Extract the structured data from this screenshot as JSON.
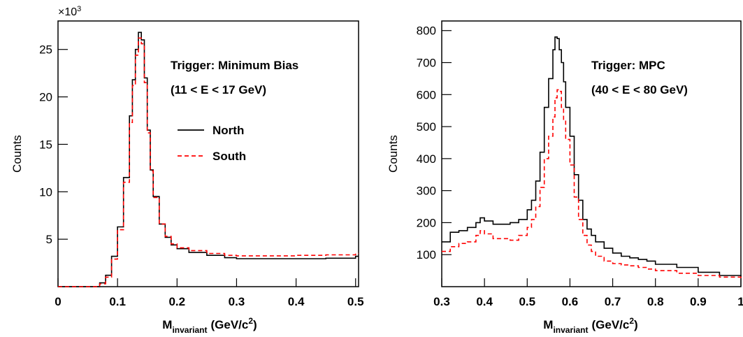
{
  "chart_data": [
    {
      "type": "histogram",
      "title": "",
      "xlabel_main": "M",
      "xlabel_sub": "invariant",
      "xlabel_unit": "(GeV/c",
      "xlabel_sup": "2",
      "xlabel_end": ")",
      "ylabel": "Counts",
      "y_multiplier": "×10",
      "y_multiplier_exp": "3",
      "xlim": [
        0,
        0.505
      ],
      "ylim": [
        0,
        28
      ],
      "x_ticks": [
        0,
        0.1,
        0.2,
        0.3,
        0.4,
        0.5
      ],
      "x_tick_labels": [
        "0",
        "0.1",
        "0.2",
        "0.3",
        "0.4",
        "0.5"
      ],
      "y_ticks": [
        5,
        10,
        15,
        20,
        25
      ],
      "y_tick_labels": [
        "5",
        "10",
        "15",
        "20",
        "25"
      ],
      "annotations": [
        "Trigger: Minimum Bias",
        "(11 < E < 17 GeV)"
      ],
      "legend": {
        "placement": "center-right",
        "entries": [
          "North",
          "South"
        ]
      },
      "series": [
        {
          "name": "North",
          "color": "#000000",
          "style": "solid",
          "x": [
            0,
            0.02,
            0.04,
            0.06,
            0.07,
            0.08,
            0.09,
            0.1,
            0.11,
            0.12,
            0.125,
            0.13,
            0.135,
            0.14,
            0.145,
            0.15,
            0.155,
            0.16,
            0.17,
            0.18,
            0.19,
            0.2,
            0.22,
            0.25,
            0.28,
            0.3,
            0.35,
            0.4,
            0.45,
            0.5
          ],
          "values": [
            0,
            0,
            0,
            0,
            0.4,
            1.2,
            3.2,
            6.3,
            11.5,
            18.0,
            21.8,
            25.0,
            26.8,
            26.0,
            22.0,
            16.5,
            12.3,
            9.5,
            6.6,
            5.2,
            4.4,
            4.0,
            3.6,
            3.3,
            3.05,
            2.95,
            2.95,
            2.95,
            3.0,
            3.2
          ]
        },
        {
          "name": "South",
          "color": "#ff0000",
          "style": "dashed",
          "x": [
            0,
            0.02,
            0.04,
            0.06,
            0.07,
            0.08,
            0.09,
            0.1,
            0.11,
            0.12,
            0.125,
            0.13,
            0.135,
            0.14,
            0.145,
            0.15,
            0.155,
            0.16,
            0.17,
            0.18,
            0.19,
            0.2,
            0.22,
            0.25,
            0.28,
            0.3,
            0.35,
            0.4,
            0.45,
            0.5
          ],
          "values": [
            0,
            0,
            0,
            0,
            0.3,
            1.0,
            2.9,
            6.0,
            11.0,
            17.3,
            21.2,
            24.4,
            26.2,
            25.6,
            21.5,
            16.2,
            12.2,
            9.4,
            6.6,
            5.3,
            4.5,
            4.1,
            3.8,
            3.5,
            3.3,
            3.25,
            3.25,
            3.3,
            3.35,
            3.5
          ]
        }
      ]
    },
    {
      "type": "histogram",
      "title": "",
      "xlabel_main": "M",
      "xlabel_sub": "invariant",
      "xlabel_unit": "(GeV/c",
      "xlabel_sup": "2",
      "xlabel_end": ")",
      "ylabel": "Counts",
      "xlim": [
        0.3,
        1.0
      ],
      "ylim": [
        0,
        830
      ],
      "x_ticks": [
        0.3,
        0.4,
        0.5,
        0.6,
        0.7,
        0.8,
        0.9,
        1.0
      ],
      "x_tick_labels": [
        "0.3",
        "0.4",
        "0.5",
        "0.6",
        "0.7",
        "0.8",
        "0.9",
        "1"
      ],
      "y_ticks": [
        100,
        200,
        300,
        400,
        500,
        600,
        700,
        800
      ],
      "y_tick_labels": [
        "100",
        "200",
        "300",
        "400",
        "500",
        "600",
        "700",
        "800"
      ],
      "annotations": [
        "Trigger: MPC",
        "(40 < E < 80 GeV)"
      ],
      "series": [
        {
          "name": "North",
          "color": "#000000",
          "style": "solid",
          "x": [
            0.3,
            0.32,
            0.34,
            0.36,
            0.38,
            0.39,
            0.4,
            0.42,
            0.44,
            0.46,
            0.48,
            0.5,
            0.51,
            0.52,
            0.53,
            0.54,
            0.55,
            0.56,
            0.565,
            0.57,
            0.575,
            0.58,
            0.585,
            0.59,
            0.6,
            0.61,
            0.62,
            0.63,
            0.64,
            0.65,
            0.66,
            0.68,
            0.7,
            0.72,
            0.74,
            0.76,
            0.78,
            0.8,
            0.85,
            0.9,
            0.95,
            1.0
          ],
          "values": [
            140,
            170,
            175,
            185,
            200,
            215,
            205,
            195,
            195,
            200,
            210,
            240,
            270,
            330,
            420,
            560,
            650,
            740,
            780,
            775,
            740,
            700,
            640,
            560,
            470,
            350,
            270,
            210,
            180,
            160,
            140,
            120,
            105,
            95,
            90,
            85,
            80,
            70,
            60,
            45,
            35,
            30
          ]
        },
        {
          "name": "South",
          "color": "#ff0000",
          "style": "dashed",
          "x": [
            0.3,
            0.32,
            0.34,
            0.36,
            0.38,
            0.39,
            0.4,
            0.42,
            0.44,
            0.46,
            0.48,
            0.5,
            0.51,
            0.52,
            0.53,
            0.54,
            0.55,
            0.56,
            0.565,
            0.57,
            0.575,
            0.58,
            0.585,
            0.59,
            0.6,
            0.61,
            0.62,
            0.63,
            0.64,
            0.65,
            0.66,
            0.68,
            0.7,
            0.72,
            0.74,
            0.76,
            0.78,
            0.8,
            0.85,
            0.9,
            0.95,
            1.0
          ],
          "values": [
            110,
            125,
            135,
            140,
            160,
            175,
            165,
            150,
            150,
            145,
            160,
            185,
            210,
            250,
            310,
            400,
            470,
            530,
            590,
            615,
            610,
            560,
            520,
            460,
            380,
            280,
            210,
            160,
            130,
            110,
            95,
            80,
            72,
            68,
            65,
            60,
            55,
            50,
            42,
            35,
            30,
            25
          ]
        }
      ]
    }
  ]
}
